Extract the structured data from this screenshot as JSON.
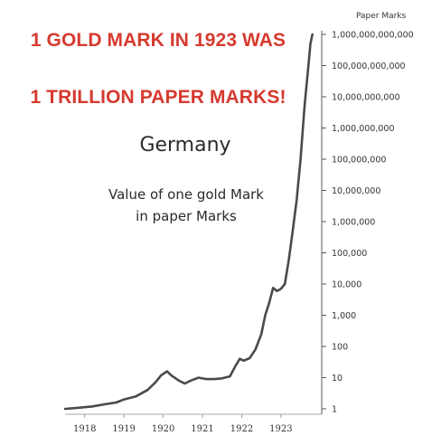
{
  "headline": {
    "line1": "1 GOLD MARK IN 1923 WAS",
    "line2": "1 TRILLION PAPER MARKS!"
  },
  "colors": {
    "headline": "#d63a2f",
    "line": "#4a4a4a",
    "text": "#2b2b2b"
  },
  "chart_data": {
    "type": "line",
    "title": "Germany",
    "subtitle": [
      "Value of one gold Mark",
      "in paper Marks"
    ],
    "ylabel": "Paper Marks",
    "xlabel": "",
    "y_scale": "log",
    "ylim": [
      1,
      1000000000000
    ],
    "xlim": [
      1917.5,
      1923.9
    ],
    "y_ticks": [
      {
        "value": 1,
        "label": "1"
      },
      {
        "value": 10,
        "label": "10"
      },
      {
        "value": 100,
        "label": "100"
      },
      {
        "value": 1000,
        "label": "1,000"
      },
      {
        "value": 10000,
        "label": "10,000"
      },
      {
        "value": 100000,
        "label": "100,000"
      },
      {
        "value": 1000000,
        "label": "1,000,000"
      },
      {
        "value": 10000000,
        "label": "10,000,000"
      },
      {
        "value": 100000000,
        "label": "100,000,000"
      },
      {
        "value": 1000000000,
        "label": "1,000,000,000"
      },
      {
        "value": 10000000000,
        "label": "10,000,000,000"
      },
      {
        "value": 100000000000,
        "label": "100,000,000,000"
      },
      {
        "value": 1000000000000,
        "label": "1,000,000,000,000"
      }
    ],
    "x_ticks": [
      {
        "value": 1918,
        "label": "1918"
      },
      {
        "value": 1919,
        "label": "1919"
      },
      {
        "value": 1920,
        "label": "1920"
      },
      {
        "value": 1921,
        "label": "1921"
      },
      {
        "value": 1922,
        "label": "1922"
      },
      {
        "value": 1923,
        "label": "1923"
      }
    ],
    "series": [
      {
        "points": [
          [
            1917.5,
            1.0
          ],
          [
            1917.9,
            1.1
          ],
          [
            1918.2,
            1.2
          ],
          [
            1918.5,
            1.4
          ],
          [
            1918.8,
            1.6
          ],
          [
            1919.0,
            2.0
          ],
          [
            1919.3,
            2.5
          ],
          [
            1919.6,
            4.0
          ],
          [
            1919.8,
            7.0
          ],
          [
            1919.95,
            12.0
          ],
          [
            1920.1,
            16.0
          ],
          [
            1920.2,
            12.0
          ],
          [
            1920.4,
            8.0
          ],
          [
            1920.55,
            6.5
          ],
          [
            1920.7,
            8.0
          ],
          [
            1920.9,
            10.0
          ],
          [
            1921.1,
            9.0
          ],
          [
            1921.3,
            9.0
          ],
          [
            1921.5,
            9.5
          ],
          [
            1921.7,
            11.0
          ],
          [
            1921.85,
            25.0
          ],
          [
            1921.95,
            40.0
          ],
          [
            1922.05,
            35.0
          ],
          [
            1922.2,
            42.0
          ],
          [
            1922.35,
            80.0
          ],
          [
            1922.5,
            250.0
          ],
          [
            1922.6,
            1000.0
          ],
          [
            1922.7,
            2500.0
          ],
          [
            1922.8,
            7500.0
          ],
          [
            1922.9,
            6000.0
          ],
          [
            1923.0,
            7000.0
          ],
          [
            1923.1,
            10000.0
          ],
          [
            1923.2,
            60000.0
          ],
          [
            1923.3,
            500000.0
          ],
          [
            1923.4,
            5000000.0
          ],
          [
            1923.5,
            100000000.0
          ],
          [
            1923.6,
            5000000000.0
          ],
          [
            1923.7,
            100000000000.0
          ],
          [
            1923.75,
            500000000000.0
          ],
          [
            1923.8,
            1000000000000.0
          ]
        ]
      }
    ]
  }
}
